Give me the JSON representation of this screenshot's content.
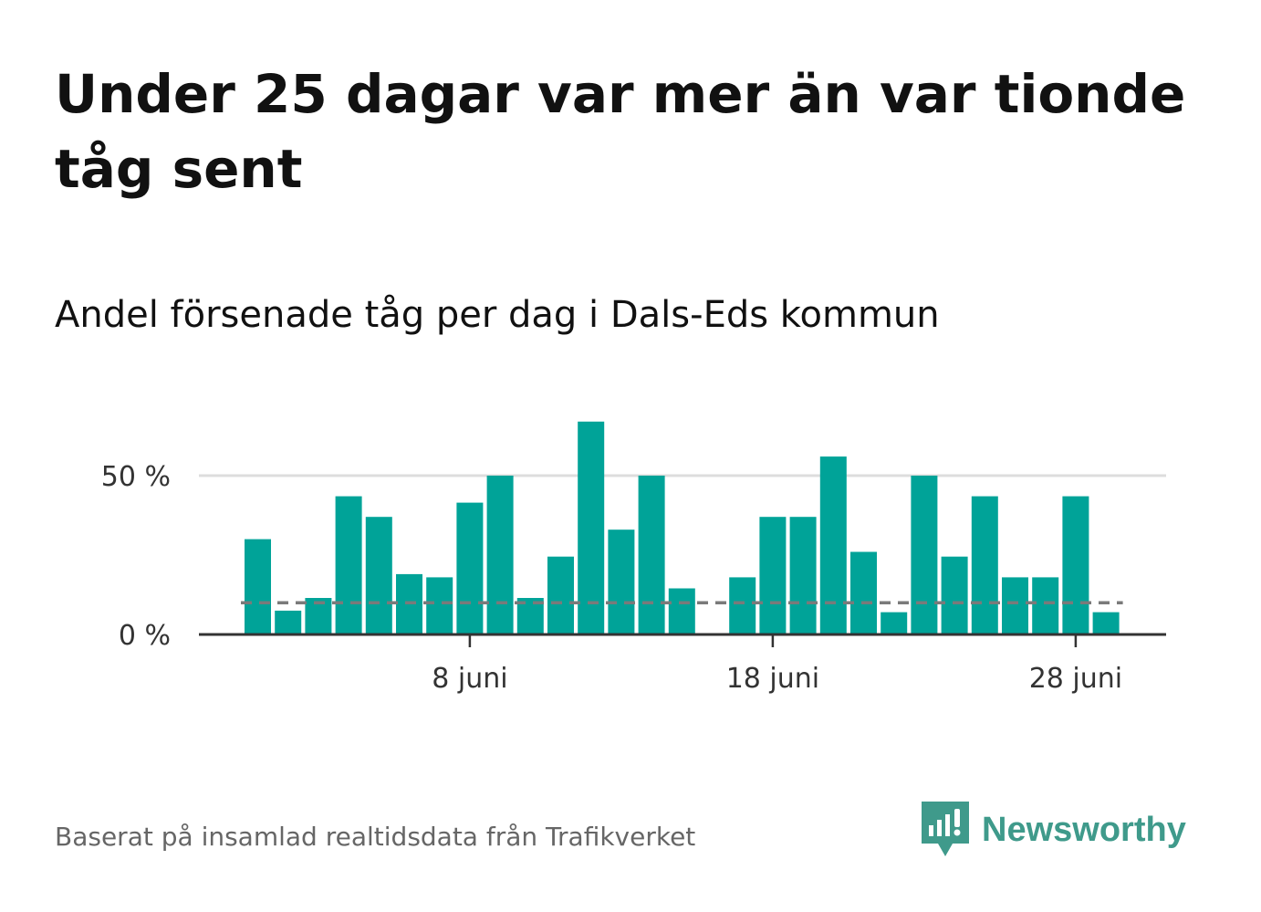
{
  "header": {
    "title": "Under 25 dagar var mer än var tionde tåg sent",
    "subtitle": "Andel försenade tåg per dag i Dals-Eds kommun"
  },
  "footer": {
    "source": "Baserat på insamlad realtidsdata från Trafikverket",
    "brand": "Newsworthy"
  },
  "colors": {
    "bar": "#00a398",
    "reference_line": "#7a7a7a",
    "grid": "#dddddd",
    "axis": "#333333",
    "brand": "#3f9a8b"
  },
  "chart_data": {
    "type": "bar",
    "x_unit": "day of June",
    "x": [
      1,
      2,
      3,
      4,
      5,
      6,
      7,
      8,
      9,
      10,
      11,
      12,
      13,
      14,
      15,
      16,
      17,
      18,
      19,
      20,
      21,
      22,
      23,
      24,
      25,
      26,
      27,
      28,
      29
    ],
    "values": [
      30,
      7.5,
      11.5,
      43.5,
      37,
      19,
      18,
      41.5,
      50,
      11.5,
      24.5,
      67,
      33,
      50,
      14.5,
      null,
      18,
      37,
      37,
      56,
      26,
      7,
      50,
      24.5,
      43.5,
      18,
      18,
      43.5,
      7
    ],
    "reference_value": 10,
    "ylim": [
      0,
      72
    ],
    "yticks": [
      {
        "value": 0,
        "label": "0 %"
      },
      {
        "value": 50,
        "label": "50 %"
      }
    ],
    "xticks": [
      {
        "value": 8,
        "label": "8 juni"
      },
      {
        "value": 18,
        "label": "18 juni"
      },
      {
        "value": 28,
        "label": "28 juni"
      }
    ],
    "grid": true,
    "legend": false
  }
}
